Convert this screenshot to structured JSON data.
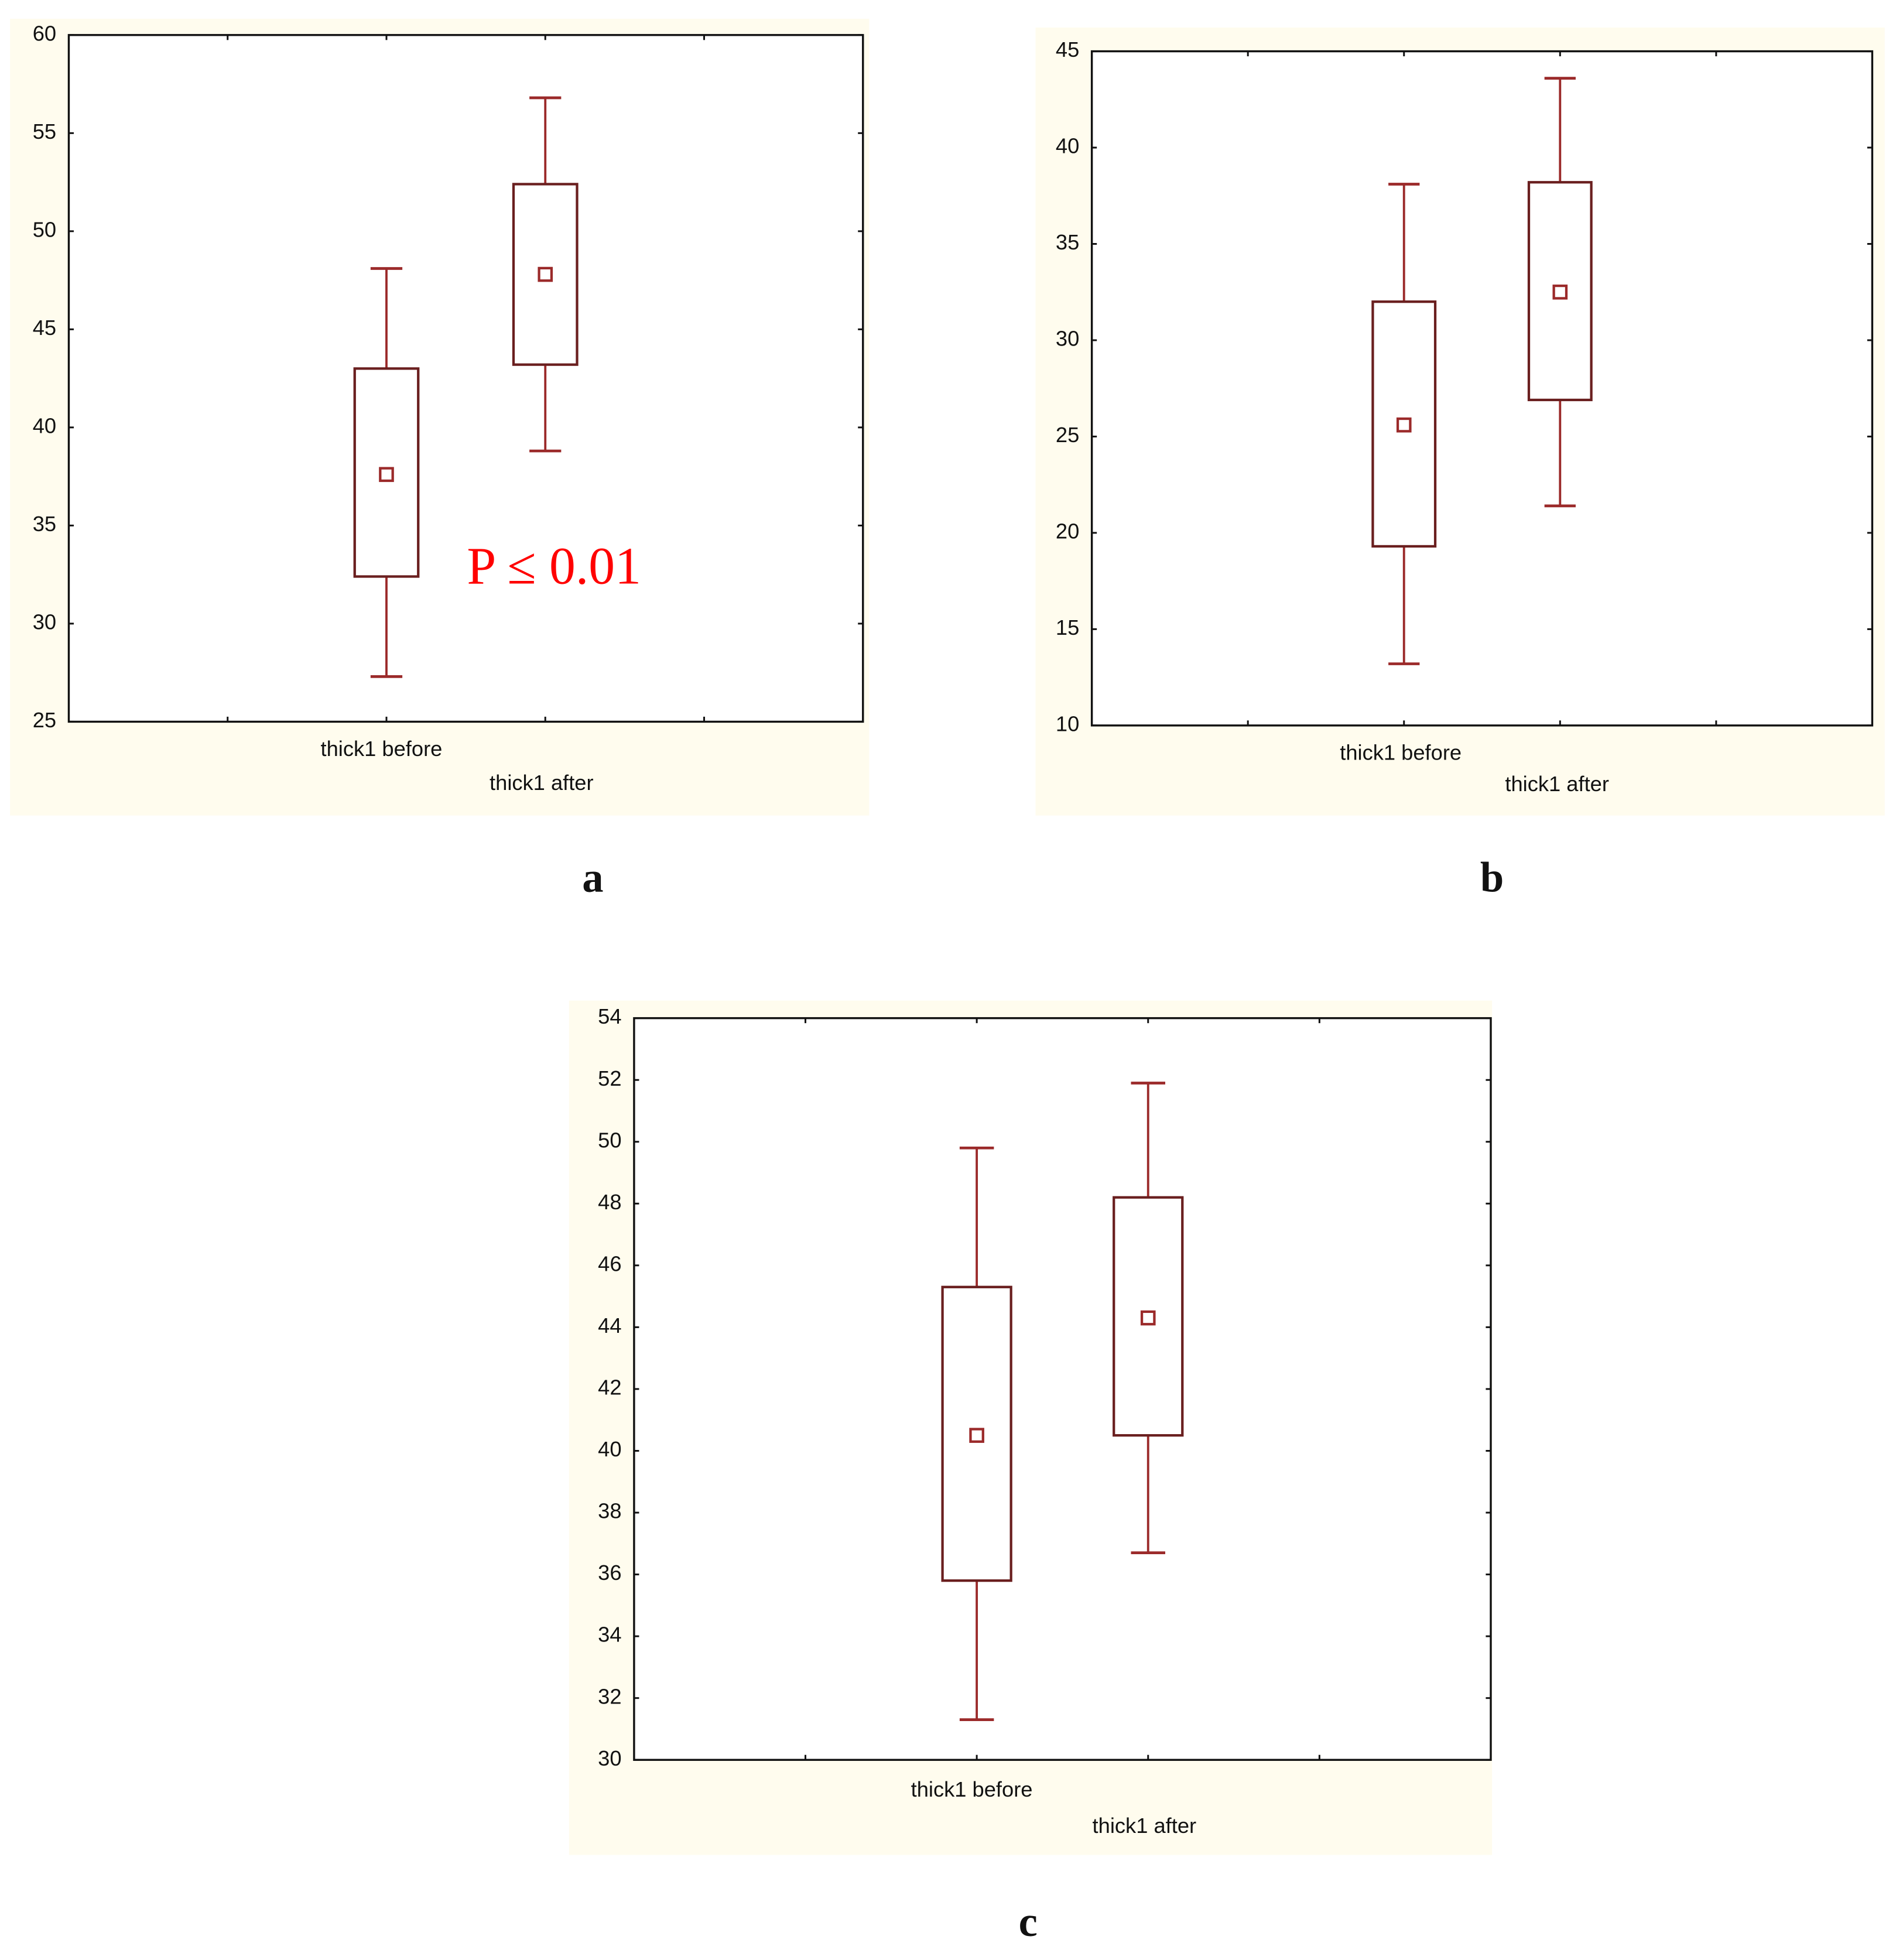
{
  "chart_data": [
    {
      "type": "box",
      "panel_label": "a",
      "annotation": "P ≤ 0.01",
      "annotation_color": "#ff0000",
      "categories": [
        "thick1 before",
        "thick1 after"
      ],
      "color": "#9b2a2a",
      "min": [
        27.3,
        38.8
      ],
      "q1": [
        32.4,
        43.2
      ],
      "mean": [
        37.6,
        47.8
      ],
      "q3": [
        43.0,
        52.4
      ],
      "max": [
        48.1,
        56.8
      ],
      "ylim": [
        25,
        60
      ],
      "yticks": [
        25,
        30,
        35,
        40,
        45,
        50,
        55,
        60
      ]
    },
    {
      "type": "box",
      "panel_label": "b",
      "categories": [
        "thick1 before",
        "thick1 after"
      ],
      "color": "#9b2a2a",
      "min": [
        13.2,
        21.4
      ],
      "q1": [
        19.3,
        26.9
      ],
      "mean": [
        25.6,
        32.5
      ],
      "q3": [
        32.0,
        38.2
      ],
      "max": [
        38.1,
        43.6
      ],
      "ylim": [
        10,
        45
      ],
      "yticks": [
        10,
        15,
        20,
        25,
        30,
        35,
        40,
        45
      ]
    },
    {
      "type": "box",
      "panel_label": "c",
      "categories": [
        "thick1 before",
        "thick1 after"
      ],
      "color": "#9b2a2a",
      "min": [
        31.3,
        36.7
      ],
      "q1": [
        35.8,
        40.5
      ],
      "mean": [
        40.5,
        44.3
      ],
      "q3": [
        45.3,
        48.2
      ],
      "max": [
        49.8,
        51.9
      ],
      "ylim": [
        30,
        54
      ],
      "yticks": [
        30,
        32,
        34,
        36,
        38,
        40,
        42,
        44,
        46,
        48,
        50,
        52,
        54
      ]
    }
  ]
}
